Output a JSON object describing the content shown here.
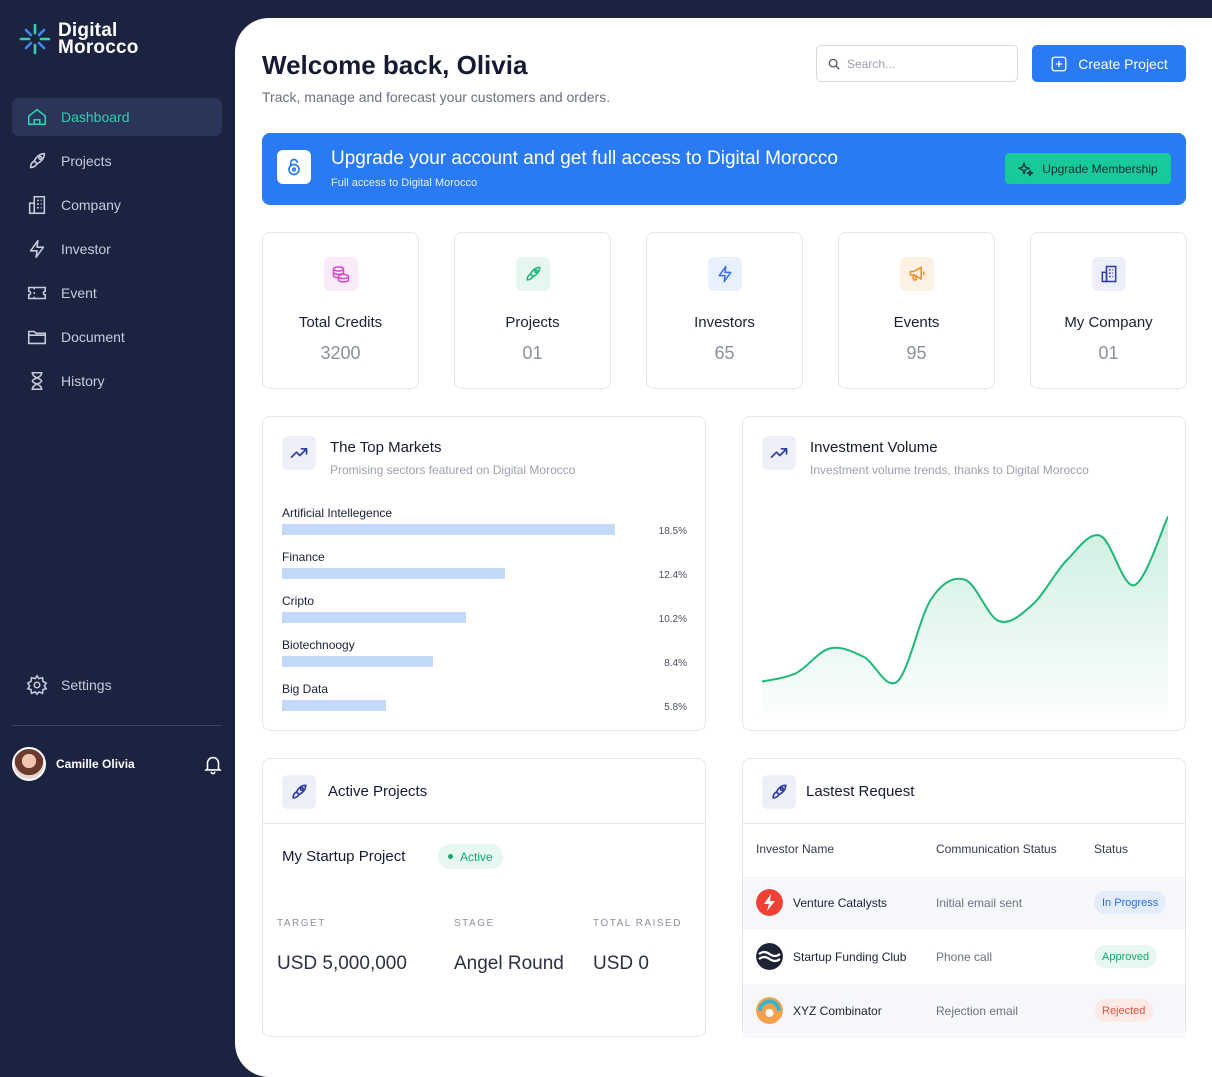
{
  "brand": {
    "line1": "Digital",
    "line2": "Morocco"
  },
  "sidebar": {
    "items": [
      {
        "label": "Dashboard",
        "icon": "home-icon",
        "active": true
      },
      {
        "label": "Projects",
        "icon": "rocket-icon"
      },
      {
        "label": "Company",
        "icon": "building-icon"
      },
      {
        "label": "Investor",
        "icon": "lightning-icon"
      },
      {
        "label": "Event",
        "icon": "ticket-icon"
      },
      {
        "label": "Document",
        "icon": "folder-icon"
      },
      {
        "label": "History",
        "icon": "hourglass-icon"
      }
    ],
    "settings_label": "Settings",
    "user_name": "Camille Olivia"
  },
  "header": {
    "title": "Welcome back, Olivia",
    "subtitle": "Track, manage and forecast your customers and orders.",
    "search_placeholder": "Search...",
    "create_label": "Create Project"
  },
  "banner": {
    "title": "Upgrade your account and get full access to Digital Morocco",
    "subtitle": "Full access to Digital Morocco",
    "button_label": "Upgrade Membership"
  },
  "stats": [
    {
      "label": "Total Credits",
      "value": "3200",
      "icon": "coins-icon",
      "color": "#d946c8",
      "bg": "#fbeaf8"
    },
    {
      "label": "Projects",
      "value": "01",
      "icon": "rocket-icon",
      "color": "#18b77e",
      "bg": "#e6f7ef"
    },
    {
      "label": "Investors",
      "value": "65",
      "icon": "lightning-icon",
      "color": "#3a6fe8",
      "bg": "#e8effd"
    },
    {
      "label": "Events",
      "value": "95",
      "icon": "megaphone-icon",
      "color": "#f08a24",
      "bg": "#fdf1e4"
    },
    {
      "label": "My Company",
      "value": "01",
      "icon": "building-icon",
      "color": "#2b3aa0",
      "bg": "#eceefa"
    }
  ],
  "top_markets": {
    "title": "The Top Markets",
    "subtitle": "Promising sectors featured on Digital Morocco",
    "items": [
      {
        "label": "Artificial Intellegence",
        "pct": "18.5%",
        "value": 18.5
      },
      {
        "label": "Finance",
        "pct": "12.4%",
        "value": 12.4
      },
      {
        "label": "Cripto",
        "pct": "10.2%",
        "value": 10.2
      },
      {
        "label": "Biotechnoogy",
        "pct": "8.4%",
        "value": 8.4
      },
      {
        "label": "Big Data",
        "pct": "5.8%",
        "value": 5.8
      }
    ]
  },
  "investment_volume": {
    "title": "Investment Volume",
    "subtitle": "Investment volume trends, thanks to Digital Morocco",
    "color": "#1fb877"
  },
  "chart_data": {
    "type": "area",
    "title": "Investment Volume",
    "x": [
      0,
      1,
      2,
      3,
      4,
      5,
      6,
      7,
      8,
      9,
      10,
      11,
      12
    ],
    "values": [
      10,
      13,
      22,
      19,
      10,
      40,
      47,
      32,
      38,
      54,
      63,
      45,
      70
    ],
    "ylim": [
      0,
      80
    ],
    "grid": false
  },
  "active_projects": {
    "title": "Active Projects",
    "project_name": "My Startup Project",
    "status": "Active",
    "target_label": "TARGET",
    "target_value": "USD 5,000,000",
    "stage_label": "STAGE",
    "stage_value": "Angel Round",
    "raised_label": "TOTAL RAISED",
    "raised_value": "USD 0"
  },
  "latest_request": {
    "title": "Lastest Request",
    "columns": [
      "Investor Name",
      "Communication Status",
      "Status"
    ],
    "rows": [
      {
        "name": "Venture Catalysts",
        "comm": "Initial email sent",
        "status": "In Progress",
        "status_color": "#2a6fe0",
        "status_bg": "#e3edfd"
      },
      {
        "name": "Startup Funding Club",
        "comm": "Phone call",
        "status": "Approved",
        "status_color": "#17a572",
        "status_bg": "#e6f8f0"
      },
      {
        "name": "XYZ Combinator",
        "comm": "Rejection email",
        "status": "Rejected",
        "status_color": "#e0533d",
        "status_bg": "#fdeae6"
      }
    ]
  }
}
